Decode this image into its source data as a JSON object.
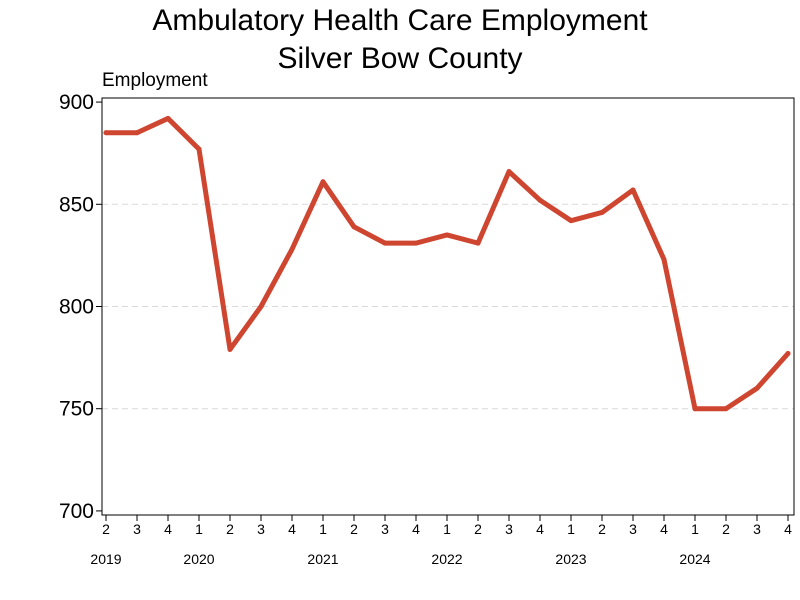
{
  "chart_data": {
    "type": "line",
    "title": [
      "Ambulatory Health Care Employment",
      "Silver Bow County"
    ],
    "ylabel": "Employment",
    "xlabel": "",
    "ylim": [
      698,
      902
    ],
    "yticks": [
      700,
      750,
      800,
      850,
      900
    ],
    "grid": "horizontal dashed",
    "line_color": "#cf4630",
    "categories": [
      "2",
      "3",
      "4",
      "1",
      "2",
      "3",
      "4",
      "1",
      "2",
      "3",
      "4",
      "1",
      "2",
      "3",
      "4",
      "1",
      "2",
      "3",
      "4",
      "1",
      "2",
      "3",
      "4"
    ],
    "years": [
      {
        "label": "2019",
        "index": 0
      },
      {
        "label": "2020",
        "index": 3
      },
      {
        "label": "2021",
        "index": 7
      },
      {
        "label": "2022",
        "index": 11
      },
      {
        "label": "2023",
        "index": 15
      },
      {
        "label": "2024",
        "index": 19
      }
    ],
    "series": [
      {
        "values": [
          885,
          885,
          892,
          877,
          779,
          800,
          828,
          861,
          839,
          831,
          831,
          835,
          831,
          866,
          852,
          842,
          846,
          857,
          823,
          750,
          750,
          760,
          777
        ]
      }
    ]
  }
}
